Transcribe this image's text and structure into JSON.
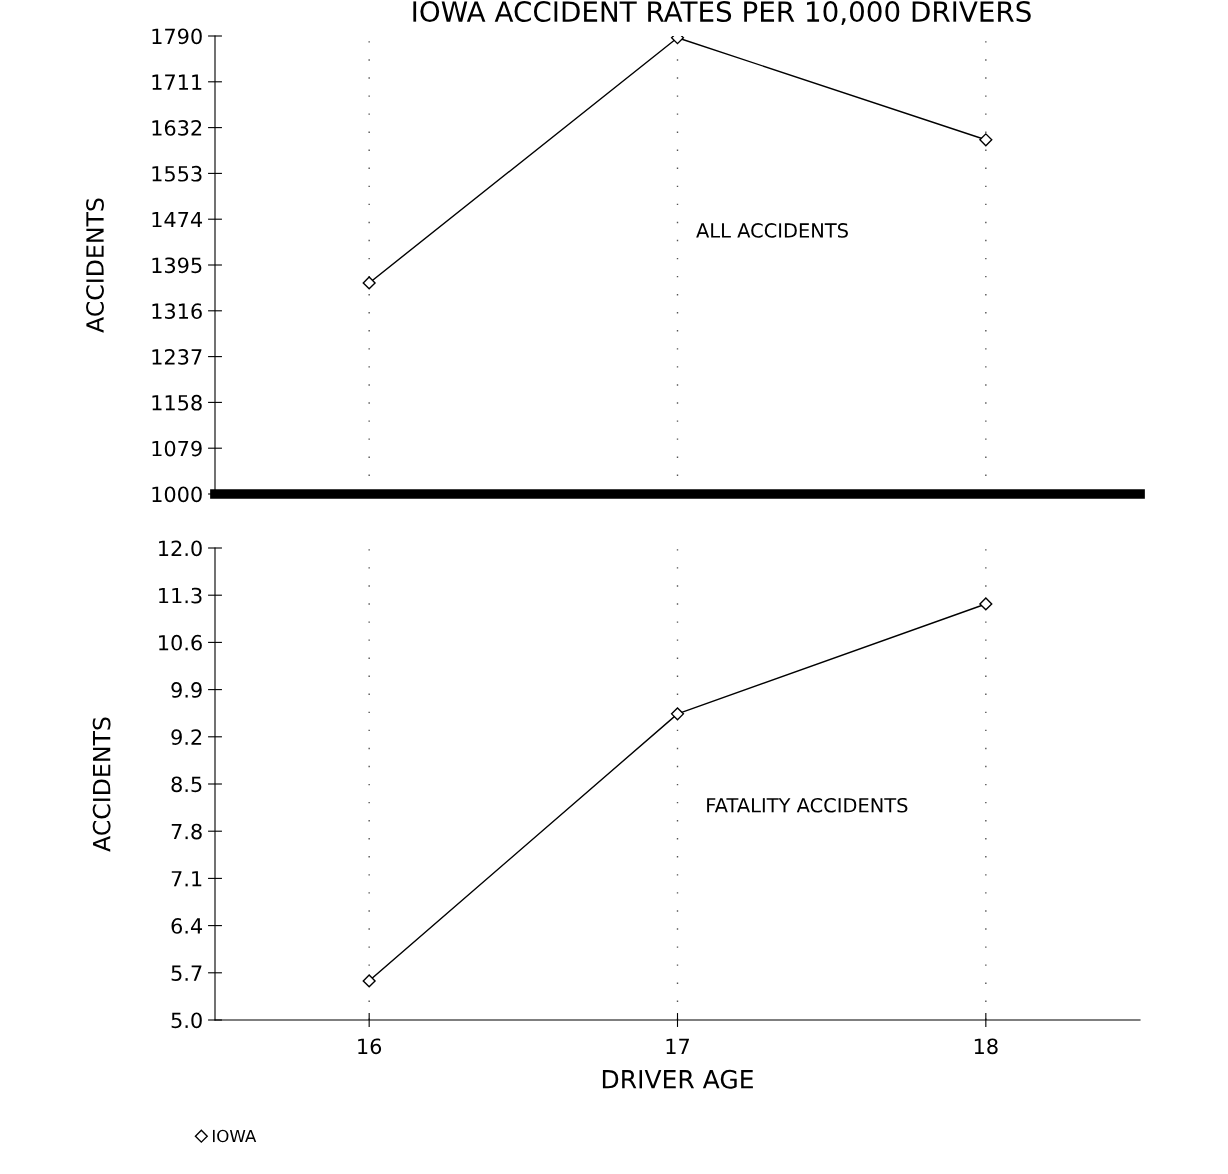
{
  "chart_data": [
    {
      "type": "line",
      "title": "IOWA ACCIDENT RATES PER 10,000 DRIVERS",
      "ylabel": "ACCIDENTS",
      "x": [
        16,
        17,
        18
      ],
      "series": [
        {
          "color": "#000000",
          "values": [
            1364,
            1787,
            1611
          ]
        }
      ],
      "annotations": [
        "ALL ACCIDENTS"
      ],
      "xlim": [
        15.5,
        18.5
      ],
      "xticks": [
        16,
        17,
        18
      ],
      "ylim": [
        1000,
        1790
      ],
      "yticks": [
        1000,
        1079,
        1158,
        1237,
        1316,
        1395,
        1474,
        1553,
        1632,
        1711,
        1790
      ],
      "tick_labels": "y",
      "grid": "x",
      "marker": "diamond",
      "line_style": "solid",
      "legend": false
    },
    {
      "type": "line",
      "xlabel": "DRIVER AGE",
      "ylabel": "ACCIDENTS",
      "x": [
        16,
        17,
        18
      ],
      "series": [
        {
          "name": "IOWA",
          "color": "#000000",
          "values": [
            5.58,
            9.54,
            11.17
          ]
        }
      ],
      "annotations": [
        "FATALITY ACCIDENTS"
      ],
      "xlim": [
        15.5,
        18.5
      ],
      "xticks": [
        16,
        17,
        18
      ],
      "ylim": [
        5.0,
        12.0
      ],
      "yticks": [
        {
          "value": 5.0,
          "label": "5.0"
        },
        {
          "value": 5.7,
          "label": "5.7"
        },
        {
          "value": 6.4,
          "label": "6.4"
        },
        {
          "value": 7.1,
          "label": "7.1"
        },
        {
          "value": 7.8,
          "label": "7.8"
        },
        {
          "value": 8.5,
          "label": "8.5"
        },
        {
          "value": 9.2,
          "label": "9.2"
        },
        {
          "value": 9.9,
          "label": "9.9"
        },
        {
          "value": 10.6,
          "label": "10.6"
        },
        {
          "value": 11.3,
          "label": "11.3"
        },
        {
          "value": 12.0,
          "label": "12.0"
        }
      ],
      "grid": "x",
      "marker": "diamond",
      "line_style": "solid",
      "legend": "bottom left"
    }
  ]
}
